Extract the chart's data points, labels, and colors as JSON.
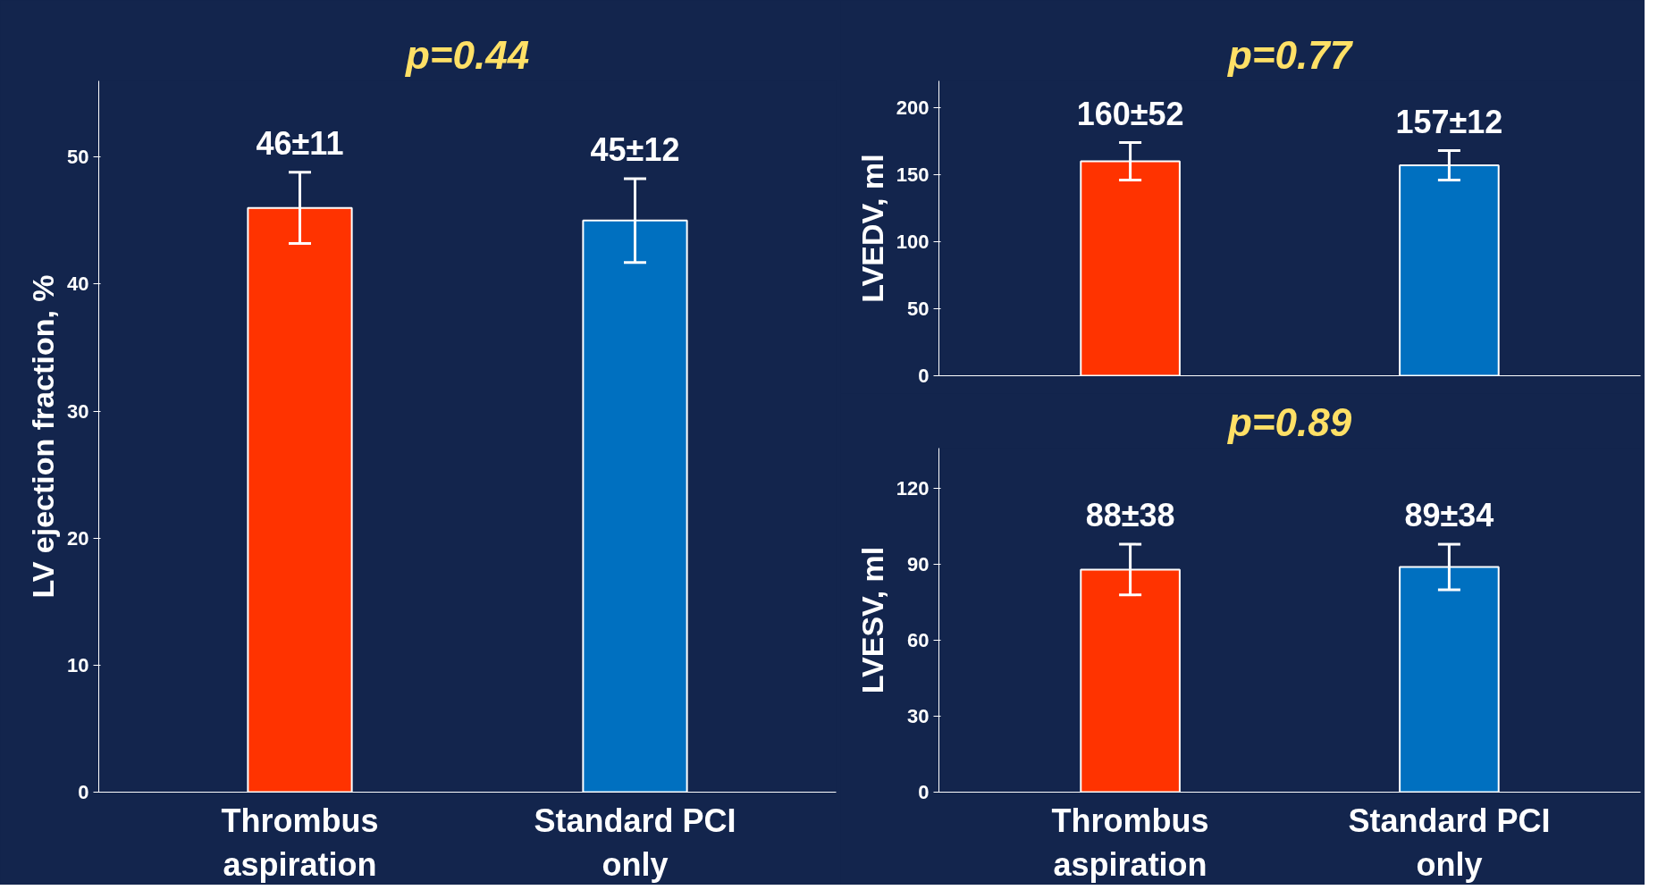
{
  "chart_data": [
    {
      "type": "bar",
      "title": "p=0.44",
      "ylabel": "LV ejection fraction, %",
      "categories": [
        "Thrombus\naspiration",
        "Standard PCI\nonly"
      ],
      "colors": [
        "#ff3300",
        "#0070c0"
      ],
      "values": [
        46,
        45
      ],
      "errors": [
        2.8,
        3.3
      ],
      "value_labels": [
        "46±11",
        "45±12"
      ],
      "ylim": [
        0,
        56
      ],
      "yticks": [
        0,
        10,
        20,
        30,
        40,
        50
      ],
      "grid": false
    },
    {
      "type": "bar",
      "title": "p=0.77",
      "ylabel": "LVEDV, ml",
      "categories": [
        null,
        null
      ],
      "colors": [
        "#ff3300",
        "#0070c0"
      ],
      "values": [
        160,
        157
      ],
      "errors": [
        14,
        11
      ],
      "value_labels": [
        "160±52",
        "157±12"
      ],
      "ylim": [
        0,
        220
      ],
      "yticks": [
        0,
        50,
        100,
        150,
        200
      ],
      "grid": false,
      "tick_labels": "y"
    },
    {
      "type": "bar",
      "title": "p=0.89",
      "ylabel": "LVESV, ml",
      "categories": [
        "Thrombus\naspiration",
        "Standard PCI\nonly"
      ],
      "colors": [
        "#ff3300",
        "#0070c0"
      ],
      "values": [
        88,
        89
      ],
      "errors": [
        10,
        9
      ],
      "value_labels": [
        "88±38",
        "89±34"
      ],
      "ylim": [
        0,
        136
      ],
      "yticks": [
        0,
        30,
        60,
        90,
        120
      ],
      "grid": false
    }
  ]
}
